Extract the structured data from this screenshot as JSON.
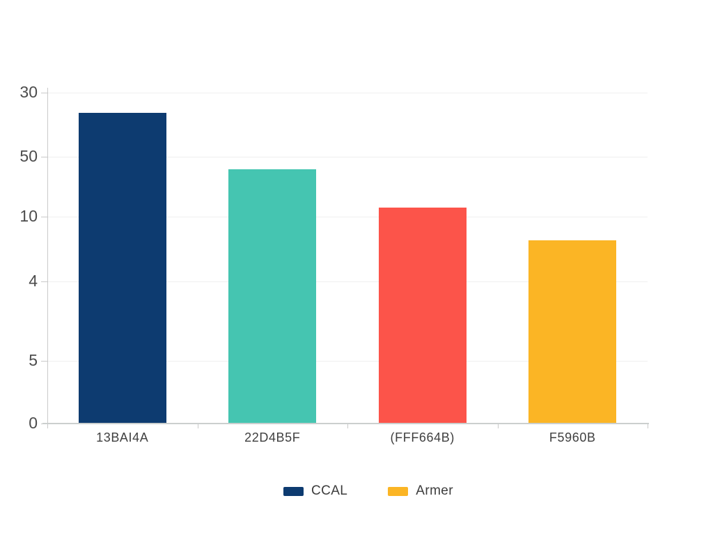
{
  "chart_data": {
    "type": "bar",
    "title": "",
    "xlabel": "",
    "ylabel": "",
    "grid": true,
    "legend_position": "bottom",
    "categories": [
      "13BAI4A",
      "22D4B5F",
      "(FFF664B)",
      "F5960B"
    ],
    "values_pct_of_plot_height": [
      93.3,
      76.4,
      64.9,
      55.0
    ],
    "bar_colors": [
      "#0d3b70",
      "#45c5b1",
      "#fc544a",
      "#fbb525"
    ],
    "y_axis": {
      "tick_labels": [
        "30",
        "50",
        "10",
        "4",
        "5",
        "0"
      ],
      "tick_pos_pct_from_top": [
        0.7,
        19.9,
        37.9,
        57.3,
        81.2,
        100
      ]
    },
    "legend": [
      {
        "label": "CCAL",
        "color": "#0d3b70"
      },
      {
        "label": "Armer",
        "color": "#fbb525"
      }
    ],
    "colors": {
      "axis": "#c9c9c9",
      "grid": "#efefef",
      "tick_text": "#4c4c4c",
      "category_text": "#3f3f3f",
      "background": "#ffffff"
    }
  }
}
